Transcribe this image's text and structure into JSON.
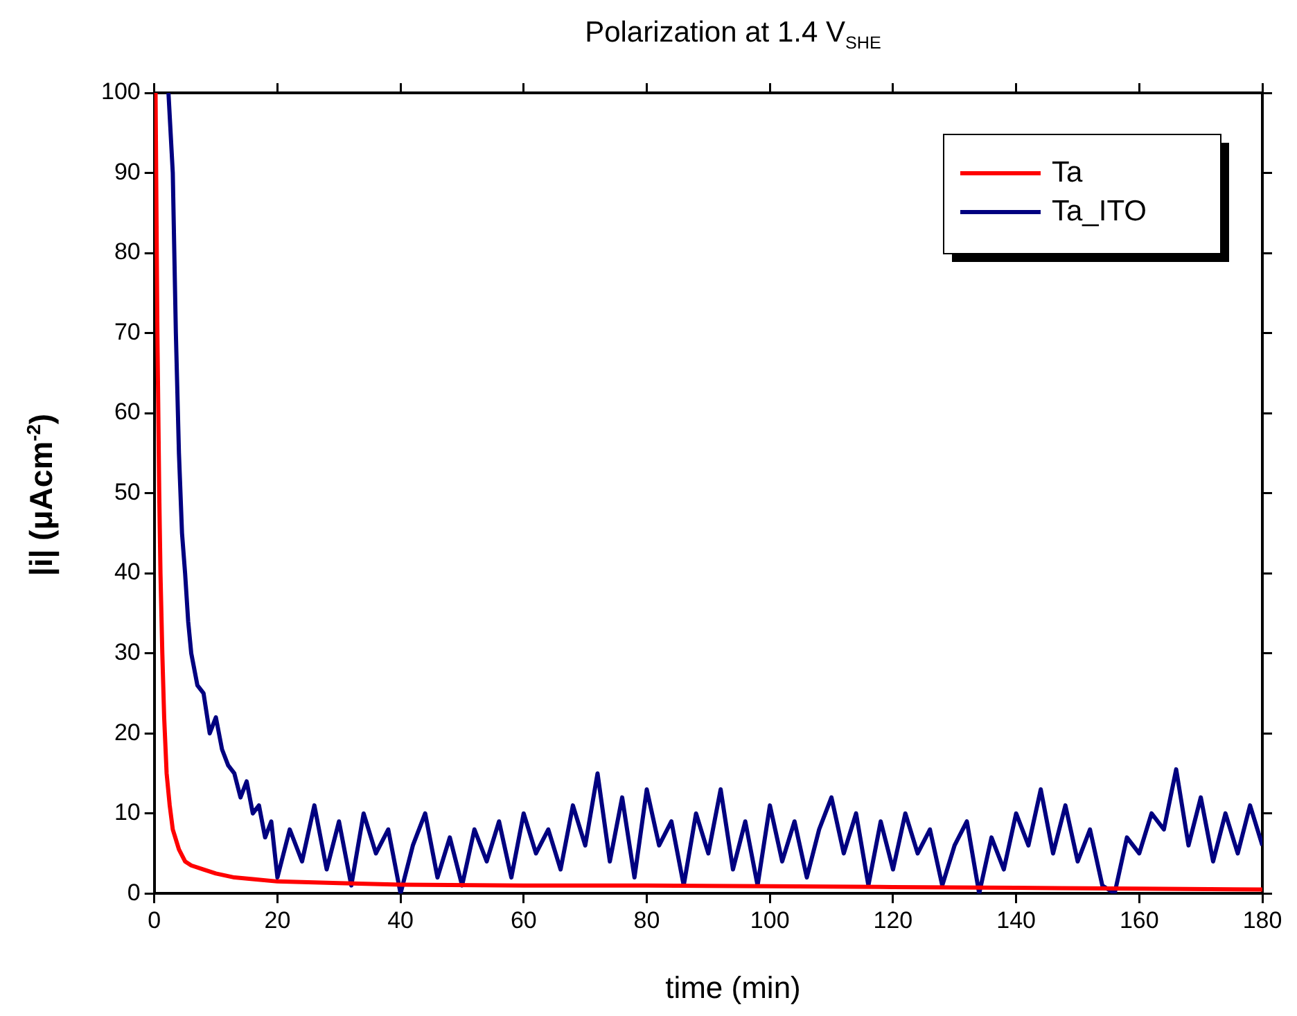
{
  "chart_data": {
    "type": "line",
    "title": "Polarization at 1.4 V$_{SHE}$",
    "xlabel": "time (min)",
    "ylabel": "|i| (μAcm$^{-2}$)",
    "xlim": [
      0,
      180
    ],
    "ylim": [
      0,
      100
    ],
    "xticks": [
      0,
      20,
      40,
      60,
      80,
      100,
      120,
      140,
      160,
      180
    ],
    "yticks": [
      0,
      10,
      20,
      30,
      40,
      50,
      60,
      70,
      80,
      90,
      100
    ],
    "grid": false,
    "legend": "top right",
    "marker": "none",
    "line_style": "solid",
    "series": [
      {
        "name": "Ta",
        "color": "#ff0000",
        "x": [
          0.2,
          0.5,
          0.8,
          1,
          1.3,
          1.6,
          2,
          2.5,
          3,
          4,
          5,
          6,
          8,
          10,
          13,
          16,
          20,
          30,
          40,
          60,
          80,
          100,
          120,
          140,
          160,
          180
        ],
        "values": [
          100,
          70,
          50,
          40,
          30,
          22,
          15,
          11,
          8,
          5.5,
          4,
          3.5,
          3,
          2.5,
          2,
          1.8,
          1.5,
          1.3,
          1.1,
          1,
          1,
          0.9,
          0.8,
          0.7,
          0.6,
          0.5
        ]
      },
      {
        "name": "Ta_ITO",
        "color": "#000080",
        "x": [
          2.3,
          3,
          3.5,
          4,
          4.5,
          5,
          5.5,
          6,
          7,
          8,
          9,
          10,
          11,
          12,
          13,
          14,
          15,
          16,
          17,
          18,
          19,
          20,
          22,
          24,
          26,
          28,
          30,
          32,
          34,
          36,
          38,
          40,
          42,
          44,
          46,
          48,
          50,
          52,
          54,
          56,
          58,
          60,
          62,
          64,
          66,
          68,
          70,
          72,
          74,
          76,
          78,
          80,
          82,
          84,
          86,
          88,
          90,
          92,
          94,
          96,
          98,
          100,
          102,
          104,
          106,
          108,
          110,
          112,
          114,
          116,
          118,
          120,
          122,
          124,
          126,
          128,
          130,
          132,
          134,
          136,
          138,
          140,
          142,
          144,
          146,
          148,
          150,
          152,
          154,
          156,
          158,
          160,
          162,
          164,
          166,
          168,
          170,
          172,
          174,
          176,
          178,
          180
        ],
        "values": [
          100,
          90,
          70,
          55,
          45,
          40,
          34,
          30,
          26,
          25,
          20,
          22,
          18,
          16,
          15,
          12,
          14,
          10,
          11,
          7,
          9,
          2,
          8,
          4,
          11,
          3,
          9,
          1,
          10,
          5,
          8,
          0,
          6,
          10,
          2,
          7,
          1,
          8,
          4,
          9,
          2,
          10,
          5,
          8,
          3,
          11,
          6,
          15,
          4,
          12,
          2,
          13,
          6,
          9,
          1,
          10,
          5,
          13,
          3,
          9,
          1,
          11,
          4,
          9,
          2,
          8,
          12,
          5,
          10,
          1,
          9,
          3,
          10,
          5,
          8,
          1,
          6,
          9,
          0,
          7,
          3,
          10,
          6,
          13,
          5,
          11,
          4,
          8,
          1,
          0,
          7,
          5,
          10,
          8,
          15.5,
          6,
          12,
          4,
          10,
          5,
          11,
          6
        ]
      }
    ]
  }
}
